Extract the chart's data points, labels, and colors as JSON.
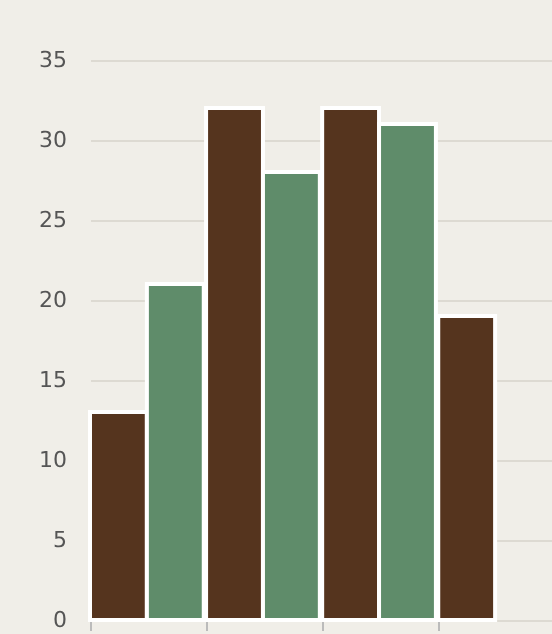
{
  "chart_data": {
    "type": "bar",
    "categories": [
      null,
      null,
      null,
      null
    ],
    "series": [
      {
        "color": "#55341e",
        "values": [
          13,
          32,
          32,
          19
        ]
      },
      {
        "color": "#5f8c6a",
        "values": [
          21,
          28,
          31,
          null
        ]
      }
    ],
    "ylim": [
      0,
      35
    ],
    "yticks": [
      0,
      5,
      10,
      15,
      20,
      25,
      30,
      35
    ],
    "grid": "y",
    "legend": false,
    "tick_labels": "y"
  }
}
